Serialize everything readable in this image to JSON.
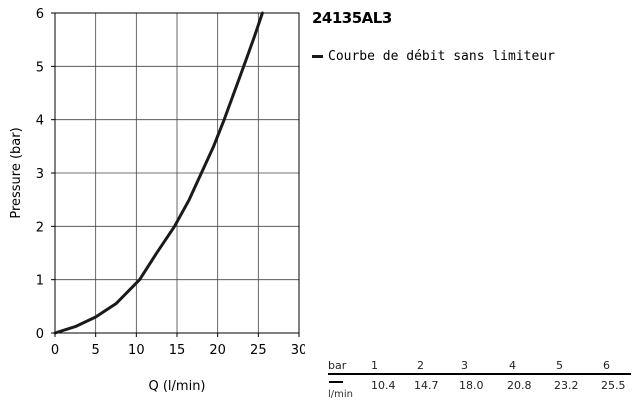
{
  "chart_data": {
    "type": "line",
    "title": "24135AL3",
    "xlabel": "Q (l/min)",
    "ylabel": "Pressure (bar)",
    "xlim": [
      0,
      30
    ],
    "ylim": [
      0,
      6
    ],
    "x_ticks": [
      "0",
      "5",
      "10",
      "15",
      "20",
      "25",
      "30"
    ],
    "y_ticks": [
      "0",
      "1",
      "2",
      "3",
      "4",
      "5",
      "6"
    ],
    "grid": true,
    "legend_position": "right",
    "series": [
      {
        "name": "Courbe de débit sans limiteur",
        "color": "#1a1a1a",
        "x": [
          0,
          2.5,
          5,
          7.5,
          10.4,
          12.5,
          14.7,
          16.5,
          18.0,
          19.5,
          20.8,
          22.0,
          23.2,
          24.5,
          25.5
        ],
        "y": [
          0,
          0.12,
          0.3,
          0.55,
          1.0,
          1.5,
          2.0,
          2.5,
          3.0,
          3.5,
          4.0,
          4.5,
          5.0,
          5.55,
          6.0
        ]
      }
    ]
  },
  "table": {
    "row1_label": "bar",
    "row2_label": "l/min",
    "bar_values": [
      "1",
      "2",
      "3",
      "4",
      "5",
      "6"
    ],
    "flow_values": [
      "10.4",
      "14.7",
      "18.0",
      "20.8",
      "23.2",
      "25.5"
    ]
  }
}
